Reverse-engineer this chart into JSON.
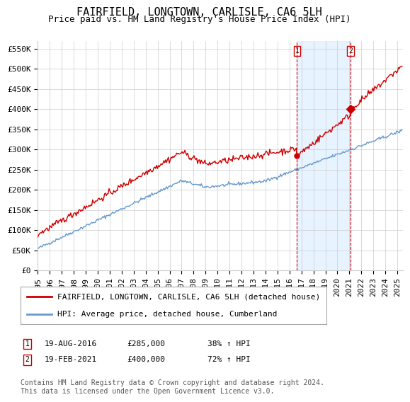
{
  "title": "FAIRFIELD, LONGTOWN, CARLISLE, CA6 5LH",
  "subtitle": "Price paid vs. HM Land Registry's House Price Index (HPI)",
  "ylabel_ticks": [
    "£0",
    "£50K",
    "£100K",
    "£150K",
    "£200K",
    "£250K",
    "£300K",
    "£350K",
    "£400K",
    "£450K",
    "£500K",
    "£550K"
  ],
  "ytick_values": [
    0,
    50000,
    100000,
    150000,
    200000,
    250000,
    300000,
    350000,
    400000,
    450000,
    500000,
    550000
  ],
  "ylim": [
    0,
    570000
  ],
  "xlim_start": 1995.0,
  "xlim_end": 2025.5,
  "xtick_labels": [
    "1995",
    "1996",
    "1997",
    "1998",
    "1999",
    "2000",
    "2001",
    "2002",
    "2003",
    "2004",
    "2005",
    "2006",
    "2007",
    "2008",
    "2009",
    "2010",
    "2011",
    "2012",
    "2013",
    "2014",
    "2015",
    "2016",
    "2017",
    "2018",
    "2019",
    "2020",
    "2021",
    "2022",
    "2023",
    "2024",
    "2025"
  ],
  "purchase1_x": 2016.635,
  "purchase1_y": 285000,
  "purchase1_label": "1",
  "purchase1_date": "19-AUG-2016",
  "purchase1_price": "£285,000",
  "purchase1_hpi": "38% ↑ HPI",
  "purchase2_x": 2021.12,
  "purchase2_y": 400000,
  "purchase2_label": "2",
  "purchase2_date": "19-FEB-2021",
  "purchase2_price": "£400,000",
  "purchase2_hpi": "72% ↑ HPI",
  "vline_color": "#cc0000",
  "red_line_color": "#cc0000",
  "blue_line_color": "#6699cc",
  "marker_color_purchase": "#cc0000",
  "legend_label_red": "FAIRFIELD, LONGTOWN, CARLISLE, CA6 5LH (detached house)",
  "legend_label_blue": "HPI: Average price, detached house, Cumberland",
  "footnote": "Contains HM Land Registry data © Crown copyright and database right 2024.\nThis data is licensed under the Open Government Licence v3.0.",
  "background_color": "#ffffff",
  "plot_bg_color": "#ffffff",
  "grid_color": "#cccccc",
  "shaded_region_color": "#ddeeff",
  "title_fontsize": 11,
  "subtitle_fontsize": 9,
  "tick_fontsize": 8,
  "legend_fontsize": 8,
  "footnote_fontsize": 7
}
